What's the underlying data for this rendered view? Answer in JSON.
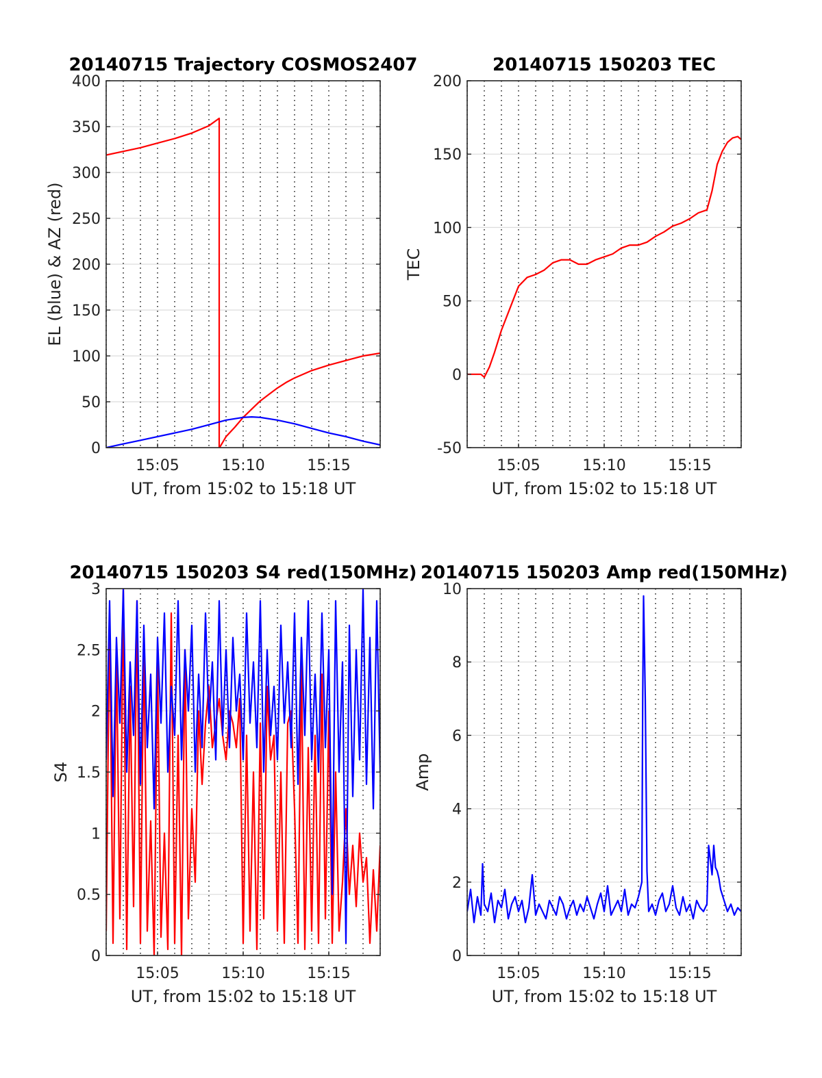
{
  "chart_data": [
    {
      "type": "line",
      "title": "20140715 Trajectory COSMOS2407",
      "xlabel": "UT, from 15:02 to 15:18 UT",
      "ylabel": "EL (blue) & AZ (red)",
      "xlim": [
        2,
        18
      ],
      "ylim": [
        0,
        400
      ],
      "x_ticks": [
        5,
        10,
        15
      ],
      "x_tick_labels": [
        "15:05",
        "15:10",
        "15:15"
      ],
      "y_ticks": [
        0,
        50,
        100,
        150,
        200,
        250,
        300,
        350,
        400
      ],
      "y_tick_labels": [
        "0",
        "50",
        "100",
        "150",
        "200",
        "250",
        "300",
        "350",
        "400"
      ],
      "grid": true,
      "series": [
        {
          "color": "#ff0000",
          "x": [
            2,
            3,
            4,
            5,
            6,
            7,
            8,
            8.6,
            8.6,
            8.62,
            9,
            9.5,
            10,
            10.5,
            11,
            11.5,
            12,
            12.5,
            13,
            14,
            15,
            16,
            17,
            18
          ],
          "y": [
            319,
            323,
            327,
            332,
            337,
            343,
            351,
            359,
            0,
            0,
            12,
            22,
            33,
            42,
            51,
            58,
            65,
            71,
            76,
            84,
            90,
            95,
            100,
            103
          ]
        },
        {
          "color": "#0000ff",
          "x": [
            2,
            3,
            4,
            5,
            6,
            7,
            8,
            9,
            10,
            10.5,
            11,
            12,
            13,
            14,
            15,
            16,
            17,
            18
          ],
          "y": [
            0,
            4,
            8,
            12,
            16,
            20,
            25,
            30,
            33,
            33.5,
            33,
            30,
            26,
            21,
            16,
            12,
            7,
            3
          ]
        }
      ]
    },
    {
      "type": "line",
      "title": "20140715 150203 TEC",
      "xlabel": "UT, from 15:02 to 15:18 UT",
      "ylabel": "TEC",
      "xlim": [
        2,
        18
      ],
      "ylim": [
        -50,
        200
      ],
      "x_ticks": [
        5,
        10,
        15
      ],
      "x_tick_labels": [
        "15:05",
        "15:10",
        "15:15"
      ],
      "y_ticks": [
        -50,
        0,
        50,
        100,
        150,
        200
      ],
      "y_tick_labels": [
        "-50",
        "0",
        "50",
        "100",
        "150",
        "200"
      ],
      "grid": true,
      "series": [
        {
          "color": "#ff0000",
          "x": [
            2,
            2.5,
            2.8,
            3,
            3.3,
            3.6,
            4,
            4.5,
            5,
            5.5,
            6,
            6.5,
            7,
            7.5,
            8,
            8.5,
            9,
            9.5,
            10,
            10.5,
            11,
            11.5,
            12,
            12.5,
            13,
            13.5,
            14,
            14.5,
            15,
            15.5,
            16,
            16.3,
            16.6,
            16.9,
            17.2,
            17.5,
            17.8,
            18
          ],
          "y": [
            0,
            0,
            0,
            -2,
            5,
            15,
            30,
            45,
            60,
            66,
            68,
            71,
            76,
            78,
            78,
            75,
            75,
            78,
            80,
            82,
            86,
            88,
            88,
            90,
            94,
            97,
            101,
            103,
            106,
            110,
            112,
            125,
            143,
            152,
            158,
            161,
            162,
            160
          ]
        }
      ]
    },
    {
      "type": "line",
      "title": "20140715 150203 S4 red(150MHz)",
      "xlabel": "UT, from 15:02 to 15:18 UT",
      "ylabel": "S4",
      "xlim": [
        2,
        18
      ],
      "ylim": [
        0,
        3
      ],
      "x_ticks": [
        5,
        10,
        15
      ],
      "x_tick_labels": [
        "15:05",
        "15:10",
        "15:15"
      ],
      "y_ticks": [
        0,
        0.5,
        1,
        1.5,
        2,
        2.5,
        3
      ],
      "y_tick_labels": [
        "0",
        "0.5",
        "1",
        "1.5",
        "2",
        "2.5",
        "3"
      ],
      "grid": true,
      "series": [
        {
          "color": "#ff0000",
          "x": [
            2,
            2.2,
            2.4,
            2.6,
            2.8,
            3,
            3.2,
            3.4,
            3.6,
            3.8,
            4,
            4.2,
            4.4,
            4.6,
            4.8,
            5,
            5.2,
            5.4,
            5.6,
            5.8,
            6,
            6.2,
            6.4,
            6.6,
            6.8,
            7,
            7.2,
            7.4,
            7.6,
            7.8,
            8,
            8.2,
            8.4,
            8.6,
            8.8,
            9,
            9.2,
            9.4,
            9.6,
            9.8,
            10,
            10.2,
            10.4,
            10.6,
            10.8,
            11,
            11.2,
            11.4,
            11.6,
            11.8,
            12,
            12.2,
            12.4,
            12.6,
            12.8,
            13,
            13.2,
            13.4,
            13.6,
            13.8,
            14,
            14.2,
            14.4,
            14.6,
            14.8,
            15,
            15.2,
            15.4,
            15.6,
            15.8,
            16,
            16.2,
            16.4,
            16.6,
            16.8,
            17,
            17.2,
            17.4,
            17.6,
            17.8,
            18
          ],
          "y": [
            0.2,
            2.8,
            0.1,
            2.5,
            0.3,
            3,
            0.05,
            2.2,
            0.4,
            2.9,
            0.1,
            2.6,
            0.2,
            1.1,
            0,
            2.4,
            0.15,
            1.0,
            0.05,
            2.8,
            0.1,
            1.8,
            0,
            2.5,
            0.3,
            1.2,
            0.6,
            2.0,
            1.4,
            1.9,
            2.2,
            1.7,
            1.9,
            2.1,
            1.8,
            1.6,
            2.0,
            1.9,
            1.7,
            2.1,
            0.1,
            1.8,
            0.2,
            1.5,
            0.05,
            1.9,
            0.3,
            2.2,
            1.6,
            1.8,
            0.2,
            1.5,
            0.1,
            1.9,
            2.0,
            1.2,
            0.1,
            2.4,
            0.05,
            1.7,
            0.2,
            1.8,
            0.1,
            2.3,
            0.3,
            2.0,
            0.1,
            1.5,
            0.2,
            0.6,
            1.2,
            0.5,
            0.9,
            0.4,
            1.0,
            0.6,
            0.8,
            0.1,
            0.7,
            0.2,
            0.9
          ]
        },
        {
          "color": "#0000ff",
          "x": [
            2,
            2.2,
            2.4,
            2.6,
            2.8,
            3,
            3.2,
            3.4,
            3.6,
            3.8,
            4,
            4.2,
            4.4,
            4.6,
            4.8,
            5,
            5.2,
            5.4,
            5.6,
            5.8,
            6,
            6.2,
            6.4,
            6.6,
            6.8,
            7,
            7.2,
            7.4,
            7.6,
            7.8,
            8,
            8.2,
            8.4,
            8.6,
            8.8,
            9,
            9.2,
            9.4,
            9.6,
            9.8,
            10,
            10.2,
            10.4,
            10.6,
            10.8,
            11,
            11.2,
            11.4,
            11.6,
            11.8,
            12,
            12.2,
            12.4,
            12.6,
            12.8,
            13,
            13.2,
            13.4,
            13.6,
            13.8,
            14,
            14.2,
            14.4,
            14.6,
            14.8,
            15,
            15.2,
            15.4,
            15.6,
            15.8,
            16,
            16.2,
            16.4,
            16.6,
            16.8,
            17,
            17.2,
            17.4,
            17.6,
            17.8,
            18
          ],
          "y": [
            1.6,
            2.9,
            1.3,
            2.6,
            1.9,
            3,
            1.5,
            2.4,
            1.8,
            2.9,
            1.4,
            2.7,
            1.7,
            2.3,
            1.2,
            2.6,
            1.9,
            2.8,
            1.5,
            2.2,
            1.8,
            2.9,
            1.6,
            2.5,
            2.0,
            2.7,
            1.5,
            2.3,
            1.7,
            2.8,
            1.9,
            2.4,
            1.6,
            2.9,
            1.8,
            2.5,
            1.7,
            2.6,
            2.0,
            2.3,
            1.6,
            2.8,
            1.9,
            2.4,
            1.7,
            2.9,
            1.5,
            2.5,
            1.8,
            2.2,
            1.6,
            2.7,
            1.9,
            2.4,
            1.7,
            2.8,
            1.4,
            2.6,
            1.8,
            2.9,
            1.6,
            2.3,
            1.5,
            2.8,
            1.7,
            2.5,
            0.5,
            2.9,
            1.5,
            2.4,
            0.1,
            2.7,
            1.3,
            2.5,
            1.6,
            3.0,
            1.4,
            2.6,
            1.2,
            2.9,
            1.5
          ]
        }
      ]
    },
    {
      "type": "line",
      "title": "20140715 150203 Amp red(150MHz)",
      "xlabel": "UT, from 15:02 to 15:18 UT",
      "ylabel": "Amp",
      "xlim": [
        2,
        18
      ],
      "ylim": [
        0,
        10
      ],
      "x_ticks": [
        5,
        10,
        15
      ],
      "x_tick_labels": [
        "15:05",
        "15:10",
        "15:15"
      ],
      "y_ticks": [
        0,
        2,
        4,
        6,
        8,
        10
      ],
      "y_tick_labels": [
        "0",
        "2",
        "4",
        "6",
        "8",
        "10"
      ],
      "grid": true,
      "series": [
        {
          "color": "#0000ff",
          "x": [
            2,
            2.2,
            2.4,
            2.6,
            2.8,
            2.9,
            3,
            3.2,
            3.4,
            3.6,
            3.8,
            4,
            4.2,
            4.4,
            4.6,
            4.8,
            5,
            5.2,
            5.4,
            5.6,
            5.8,
            6,
            6.2,
            6.4,
            6.6,
            6.8,
            7,
            7.2,
            7.4,
            7.6,
            7.8,
            8,
            8.2,
            8.4,
            8.6,
            8.8,
            9,
            9.2,
            9.4,
            9.6,
            9.8,
            10,
            10.2,
            10.4,
            10.6,
            10.8,
            11,
            11.2,
            11.4,
            11.6,
            11.8,
            12,
            12.2,
            12.25,
            12.3,
            12.35,
            12.4,
            12.5,
            12.6,
            12.8,
            13,
            13.2,
            13.4,
            13.6,
            13.8,
            14,
            14.2,
            14.4,
            14.6,
            14.8,
            15,
            15.2,
            15.4,
            15.6,
            15.8,
            16,
            16.1,
            16.2,
            16.3,
            16.4,
            16.5,
            16.6,
            16.7,
            16.8,
            17,
            17.2,
            17.4,
            17.6,
            17.8,
            18
          ],
          "y": [
            1.2,
            1.8,
            0.9,
            1.6,
            1.1,
            2.5,
            1.4,
            1.2,
            1.7,
            0.9,
            1.5,
            1.3,
            1.8,
            1.0,
            1.4,
            1.6,
            1.2,
            1.5,
            0.9,
            1.3,
            2.2,
            1.1,
            1.4,
            1.2,
            1.0,
            1.5,
            1.3,
            1.1,
            1.6,
            1.4,
            1.0,
            1.3,
            1.5,
            1.1,
            1.4,
            1.2,
            1.6,
            1.3,
            1.0,
            1.4,
            1.7,
            1.2,
            1.9,
            1.1,
            1.3,
            1.5,
            1.2,
            1.8,
            1.1,
            1.4,
            1.3,
            1.6,
            2.0,
            7.1,
            9.8,
            8.4,
            7.0,
            2.3,
            1.2,
            1.4,
            1.1,
            1.5,
            1.7,
            1.2,
            1.4,
            1.9,
            1.3,
            1.1,
            1.6,
            1.2,
            1.4,
            1.0,
            1.5,
            1.3,
            1.2,
            1.4,
            3.0,
            2.6,
            2.2,
            3.0,
            2.4,
            2.3,
            2.1,
            1.8,
            1.5,
            1.2,
            1.4,
            1.1,
            1.3,
            1.2
          ]
        }
      ]
    }
  ]
}
